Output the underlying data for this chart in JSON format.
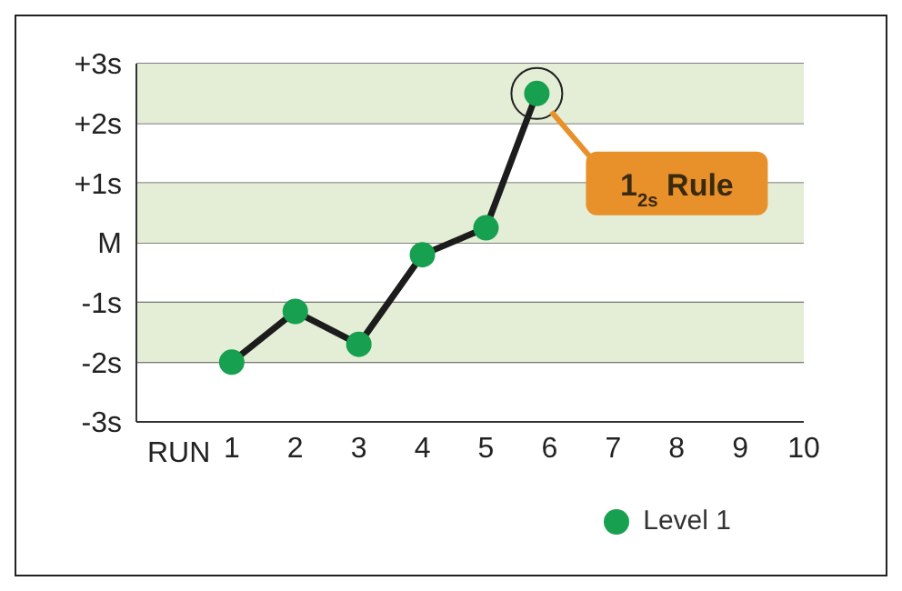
{
  "chart_data": {
    "type": "line",
    "xlabel": "RUN",
    "x": [
      1,
      2,
      3,
      4,
      5,
      5.8
    ],
    "xlim": [
      -0.5,
      10
    ],
    "xticks": [
      1,
      2,
      3,
      4,
      5,
      6,
      7,
      8,
      9,
      10
    ],
    "ylim": [
      -3,
      3
    ],
    "yticks": [
      {
        "value": -3,
        "label": "-3s"
      },
      {
        "value": -2,
        "label": "-2s"
      },
      {
        "value": -1,
        "label": "-1s"
      },
      {
        "value": 0,
        "label": "M"
      },
      {
        "value": 1,
        "label": "+1s"
      },
      {
        "value": 2,
        "label": "+2s"
      },
      {
        "value": 3,
        "label": "+3s"
      }
    ],
    "series": [
      {
        "name": "Level 1",
        "color": "#17a04f",
        "values": [
          -2.0,
          -1.15,
          -1.7,
          -0.2,
          0.25,
          2.5
        ]
      }
    ],
    "bands": [
      {
        "axis": "y",
        "from": 2,
        "to": 3,
        "color": "#e4edd5"
      },
      {
        "axis": "y",
        "from": 0,
        "to": 1,
        "color": "#e4edd5"
      },
      {
        "axis": "y",
        "from": -2,
        "to": -1,
        "color": "#e4edd5"
      }
    ],
    "annotations": [
      "1$_{2s}$ Rule"
    ],
    "grid": "y",
    "legend": "bottom right",
    "marker": "circle",
    "line_style": "solid"
  }
}
